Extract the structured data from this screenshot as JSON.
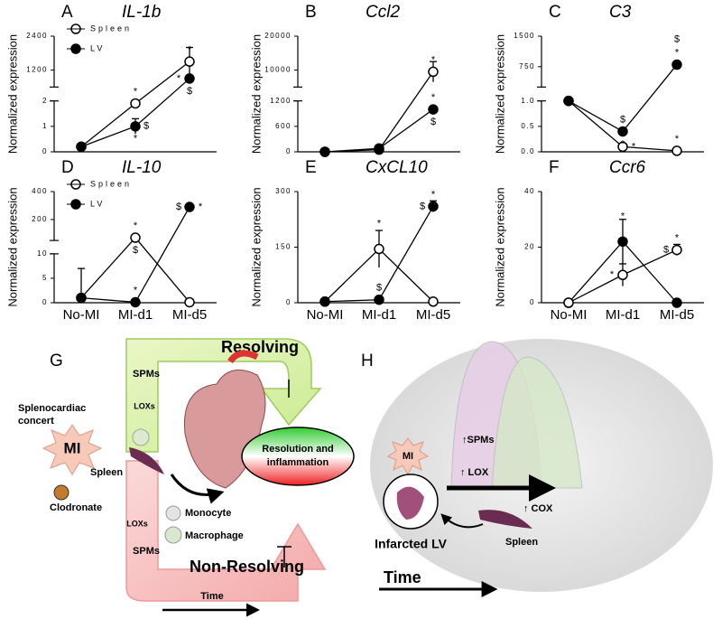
{
  "chart_data": [
    {
      "type": "line",
      "panel": "A",
      "title": "IL-1b",
      "y_label": "Normalized expression",
      "categories": [
        null,
        null,
        null
      ],
      "y_segments": [
        {
          "ylim": [
            0,
            2
          ],
          "yticks": [
            0,
            1,
            2
          ]
        },
        {
          "ylim": [
            600,
            2400
          ],
          "yticks": [
            1200,
            2400
          ]
        }
      ],
      "series": [
        {
          "name": "Spleen",
          "color": "#000000",
          "marker": "open",
          "values": [
            0.2,
            1.9,
            1500
          ],
          "errors": [
            null,
            0.15,
            500
          ]
        },
        {
          "name": "LV",
          "color": "#000000",
          "marker": "filled",
          "values": [
            0.2,
            1.0,
            900
          ],
          "errors": [
            null,
            0.3,
            null
          ]
        }
      ],
      "annotations": [
        {
          "text": "*",
          "series": 0,
          "index": 1,
          "side": "above"
        },
        {
          "text": "*",
          "series": 1,
          "index": 1,
          "side": "below"
        },
        {
          "text": "$",
          "series": 1,
          "index": 1,
          "side": "right"
        },
        {
          "text": "*",
          "series": 1,
          "index": 2,
          "side": "left"
        },
        {
          "text": "$",
          "series": 1,
          "index": 2,
          "side": "below"
        },
        {
          "text": "*",
          "series": 0,
          "index": 2,
          "side": "above"
        }
      ]
    },
    {
      "type": "line",
      "panel": "B",
      "title": "Ccl2",
      "y_label": "Normalized expression",
      "categories": [
        null,
        null,
        null
      ],
      "y_segments": [
        {
          "ylim": [
            0,
            1200
          ],
          "yticks": [
            0,
            600,
            1200
          ]
        },
        {
          "ylim": [
            5000,
            20000
          ],
          "yticks": [
            10000,
            20000
          ]
        }
      ],
      "series": [
        {
          "color": "#000000",
          "marker": "open",
          "values": [
            0,
            50,
            9500
          ],
          "errors": [
            null,
            null,
            3000
          ]
        },
        {
          "color": "#000000",
          "marker": "filled",
          "values": [
            0,
            80,
            1000
          ],
          "errors": [
            null,
            null,
            null
          ]
        }
      ],
      "annotations": [
        {
          "text": "*",
          "series": 0,
          "index": 2,
          "side": "above"
        },
        {
          "text": "*",
          "series": 1,
          "index": 2,
          "side": "above"
        },
        {
          "text": "$",
          "series": 1,
          "index": 2,
          "side": "below"
        }
      ]
    },
    {
      "type": "line",
      "panel": "C",
      "title": "C3",
      "y_label": "Normalized expression",
      "categories": [
        null,
        null,
        null
      ],
      "y_segments": [
        {
          "ylim": [
            0,
            1
          ],
          "yticks": [
            {
              "value": 0,
              "label": "0.0"
            },
            {
              "value": 0.5,
              "label": "0.5"
            },
            {
              "value": 1,
              "label": "1.0"
            }
          ]
        },
        {
          "ylim": [
            250,
            1500
          ],
          "yticks": [
            750,
            1500
          ]
        }
      ],
      "series": [
        {
          "color": "#000000",
          "marker": "open",
          "values": [
            1.0,
            0.1,
            0.02
          ],
          "errors": [
            null,
            null,
            null
          ]
        },
        {
          "color": "#000000",
          "marker": "filled",
          "values": [
            1.0,
            0.4,
            800
          ],
          "errors": [
            null,
            null,
            80
          ]
        }
      ],
      "annotations": [
        {
          "text": "$",
          "series": 1,
          "index": 1,
          "side": "above"
        },
        {
          "text": "*",
          "series": 1,
          "index": 1,
          "side": "below"
        },
        {
          "text": "*",
          "series": 0,
          "index": 1,
          "side": "right"
        },
        {
          "text": "*",
          "series": 0,
          "index": 2,
          "side": "above"
        },
        {
          "text": "*",
          "series": 1,
          "index": 2,
          "side": "above"
        },
        {
          "text": "$",
          "series": 1,
          "index": 2,
          "side": "top"
        }
      ]
    },
    {
      "type": "line",
      "panel": "D",
      "title": "IL-10",
      "y_label": "Normalized expression",
      "categories": [
        "No-MI",
        "MI-d1",
        "MI-d5"
      ],
      "y_segments": [
        {
          "ylim": [
            0,
            10
          ],
          "yticks": [
            0,
            5,
            10
          ]
        },
        {
          "ylim": [
            50,
            400
          ],
          "yticks": [
            200,
            400
          ]
        }
      ],
      "series": [
        {
          "name": "Spleen",
          "color": "#000000",
          "marker": "open",
          "values": [
            1,
            70,
            0.1
          ],
          "errors": [
            null,
            null,
            null
          ]
        },
        {
          "name": "LV",
          "color": "#000000",
          "marker": "filled",
          "values": [
            1,
            0.1,
            290
          ],
          "errors": [
            6,
            null,
            null
          ]
        }
      ],
      "annotations": [
        {
          "text": "*",
          "series": 0,
          "index": 1,
          "side": "above"
        },
        {
          "text": "$",
          "series": 0,
          "index": 1,
          "side": "below"
        },
        {
          "text": "*",
          "series": 1,
          "index": 1,
          "side": "above"
        },
        {
          "text": "*",
          "series": 1,
          "index": 2,
          "side": "right"
        },
        {
          "text": "$",
          "series": 1,
          "index": 2,
          "side": "left"
        }
      ]
    },
    {
      "type": "line",
      "panel": "E",
      "title": "CxCL10",
      "y_label": "Normalized expression",
      "categories": [
        "No-MI",
        "MI-d1",
        "MI-d5"
      ],
      "ylim": [
        0,
        300
      ],
      "yticks": [
        0,
        150,
        300
      ],
      "series": [
        {
          "color": "#000000",
          "marker": "open",
          "values": [
            3,
            145,
            3
          ],
          "errors": [
            null,
            50,
            null
          ]
        },
        {
          "color": "#000000",
          "marker": "filled",
          "values": [
            3,
            8,
            260
          ],
          "errors": [
            null,
            null,
            15
          ]
        }
      ],
      "annotations": [
        {
          "text": "*",
          "series": 0,
          "index": 1,
          "side": "top"
        },
        {
          "text": "$",
          "series": 1,
          "index": 1,
          "side": "above"
        },
        {
          "text": "*",
          "series": 1,
          "index": 2,
          "side": "above"
        },
        {
          "text": "$",
          "series": 1,
          "index": 2,
          "side": "left"
        }
      ]
    },
    {
      "type": "line",
      "panel": "F",
      "title": "Ccr6",
      "y_label": "Normalized expression",
      "categories": [
        "No-MI",
        "MI-d1",
        "MI-d5"
      ],
      "ylim": [
        0,
        40
      ],
      "yticks": [
        0,
        20,
        40
      ],
      "series": [
        {
          "color": "#000000",
          "marker": "filled",
          "values": [
            0,
            22,
            0
          ],
          "errors": [
            null,
            8,
            null
          ]
        },
        {
          "color": "#000000",
          "marker": "open",
          "values": [
            0,
            10,
            19
          ],
          "errors": [
            null,
            4,
            2
          ]
        }
      ],
      "annotations": [
        {
          "text": "*",
          "series": 0,
          "index": 1,
          "side": "top"
        },
        {
          "text": "*",
          "series": 1,
          "index": 1,
          "side": "left"
        },
        {
          "text": "*",
          "series": 1,
          "index": 2,
          "side": "above"
        },
        {
          "text": "$",
          "series": 1,
          "index": 2,
          "side": "left"
        }
      ]
    }
  ],
  "diagram_g": {
    "letter": "G",
    "resolving": "Resolving",
    "non_resolving": "Non-Resolving",
    "spms_top": "SPMs",
    "loxs_top": "LOXs",
    "concert_1": "Splenocardiac",
    "concert_2": "concert",
    "mi": "MI",
    "spleen": "Spleen",
    "clodronate": "Clodronate",
    "loxs_bottom": "LOXs",
    "spms_bottom": "SPMs",
    "monocyte": "Monocyte",
    "macrophage": "Macrophage",
    "resolution_1": "Resolution and",
    "resolution_2": "inflammation",
    "time": "Time"
  },
  "diagram_h": {
    "letter": "H",
    "spms": "↑SPMs",
    "lox": "↑ LOX",
    "mi": "MI",
    "infarcted_lv": "Infarcted LV",
    "cox": "↑ COX",
    "spleen": "Spleen",
    "time": "Time"
  }
}
